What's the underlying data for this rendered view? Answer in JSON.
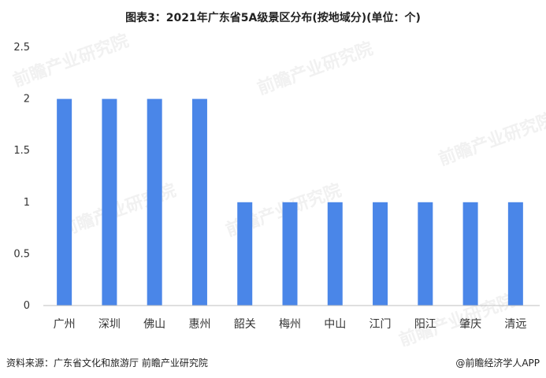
{
  "title": "图表3：2021年广东省5A级景区分布(按地域分)(单位：个)",
  "watermark": "前瞻产业研究院",
  "source": "资料来源：广东省文化和旅游厅 前瞻产业研究院",
  "credit": "@前瞻经济学人APP",
  "colors": {
    "bar": "#4a86e8",
    "axis": "#bfbfbf",
    "text": "#333333"
  },
  "chart_data": {
    "type": "bar",
    "title": "图表3：2021年广东省5A级景区分布(按地域分)(单位：个)",
    "xlabel": "",
    "ylabel": "",
    "categories": [
      "广州",
      "深圳",
      "佛山",
      "惠州",
      "韶关",
      "梅州",
      "中山",
      "江门",
      "阳江",
      "肇庆",
      "清远"
    ],
    "values": [
      2,
      2,
      2,
      2,
      1,
      1,
      1,
      1,
      1,
      1,
      1
    ],
    "ylim": [
      0,
      2.5
    ],
    "yticks": [
      0,
      0.5,
      1,
      1.5,
      2,
      2.5
    ],
    "ytick_labels": [
      "0",
      "0.5",
      "1",
      "1.5",
      "2",
      "2.5"
    ],
    "grid": false,
    "legend": "none"
  }
}
